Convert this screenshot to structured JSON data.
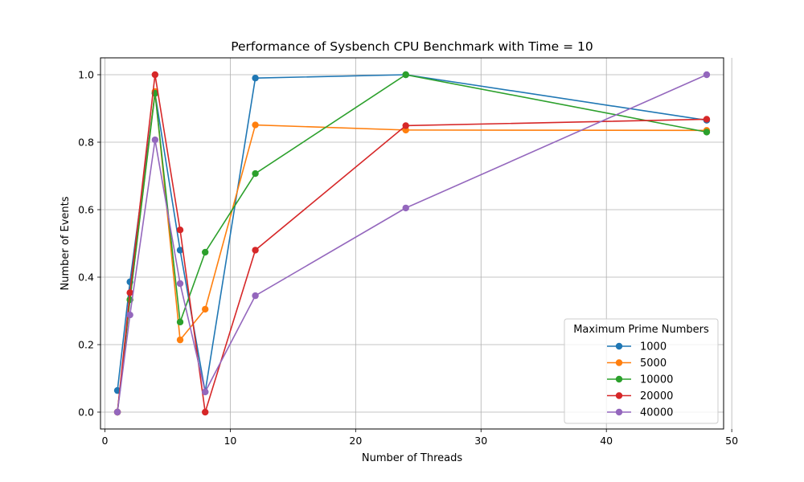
{
  "chart_data": {
    "type": "line",
    "title": "Performance of Sysbench CPU Benchmark with Time = 10",
    "xlabel": "Number of Threads",
    "ylabel": "Number of Events",
    "xlim": [
      -0.35,
      49.35
    ],
    "ylim": [
      -0.05,
      1.05
    ],
    "xticks": [
      0,
      10,
      20,
      30,
      40,
      50
    ],
    "yticks": [
      0.0,
      0.2,
      0.4,
      0.6,
      0.8,
      1.0
    ],
    "xtick_labels": [
      "0",
      "10",
      "20",
      "30",
      "40",
      "50"
    ],
    "ytick_labels": [
      "0.0",
      "0.2",
      "0.4",
      "0.6",
      "0.8",
      "1.0"
    ],
    "grid": true,
    "legend": {
      "title": "Maximum Prime Numbers",
      "position": "bottom-right"
    },
    "x": [
      1,
      2,
      4,
      6,
      8,
      12,
      24,
      48
    ],
    "series": [
      {
        "name": "1000",
        "color": "#1f77b4",
        "values": [
          0.064,
          0.386,
          0.945,
          0.48,
          0.06,
          0.99,
          1.0,
          0.865
        ]
      },
      {
        "name": "5000",
        "color": "#ff7f0e",
        "values": [
          0.0,
          0.333,
          0.95,
          0.214,
          0.305,
          0.851,
          0.836,
          0.835
        ]
      },
      {
        "name": "10000",
        "color": "#2ca02c",
        "values": [
          0.0,
          0.333,
          0.945,
          0.267,
          0.474,
          0.707,
          1.0,
          0.83
        ]
      },
      {
        "name": "20000",
        "color": "#d62728",
        "values": [
          0.0,
          0.354,
          1.0,
          0.54,
          0.0,
          0.48,
          0.849,
          0.868
        ]
      },
      {
        "name": "40000",
        "color": "#9467bd",
        "values": [
          0.0,
          0.288,
          0.807,
          0.381,
          0.06,
          0.345,
          0.605,
          1.0
        ]
      }
    ]
  }
}
